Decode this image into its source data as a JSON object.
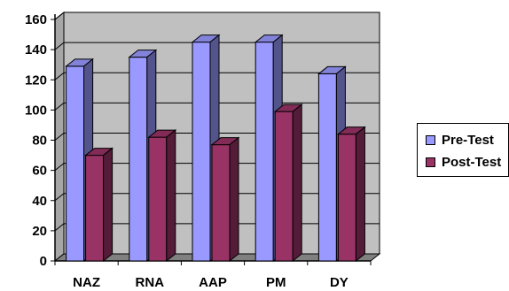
{
  "chart_data": {
    "type": "bar",
    "categories": [
      "NAZ",
      "RNA",
      "AAP",
      "PM",
      "DY"
    ],
    "series": [
      {
        "name": "Pre-Test",
        "values": [
          129,
          135,
          145,
          145,
          124
        ],
        "color": "#9999ff"
      },
      {
        "name": "Post-Test",
        "values": [
          70,
          82,
          77,
          99,
          84
        ],
        "color": "#993366"
      }
    ],
    "ylim": [
      0,
      160
    ],
    "yticks": [
      "0",
      "20",
      "40",
      "60",
      "80",
      "100",
      "120",
      "140",
      "160"
    ],
    "title": "",
    "xlabel": "",
    "ylabel": "",
    "grid": true,
    "style": "3d",
    "plot_background": "#c0c0c0",
    "legend_position": "right"
  }
}
